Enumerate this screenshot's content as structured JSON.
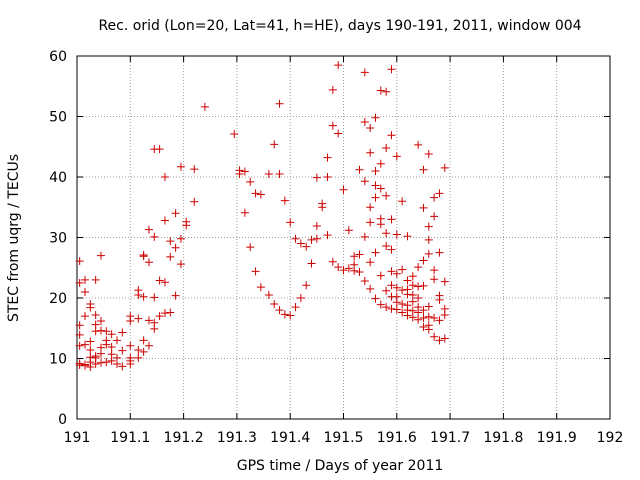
{
  "chart_data": {
    "type": "scatter",
    "title": "Rec. orid (Lon=20, Lat=41, h=HE), days 190-191, 2011, window 004",
    "xlabel": "GPS time / Days of year 2011",
    "ylabel": "STEC from uqrg / TECUs",
    "xlim": [
      191,
      192
    ],
    "ylim": [
      0,
      60
    ],
    "x_ticks": [
      "191",
      "191.1",
      "191.2",
      "191.3",
      "191.4",
      "191.5",
      "191.6",
      "191.7",
      "191.8",
      "191.9",
      "192"
    ],
    "y_ticks": [
      "0",
      "10",
      "20",
      "30",
      "40",
      "50",
      "60"
    ],
    "grid": true,
    "marker": "plus",
    "color": "#cc0000",
    "series": [
      {
        "points": [
          [
            191.005,
            26.1
          ],
          [
            191.005,
            22.5
          ],
          [
            191.005,
            15.5
          ],
          [
            191.005,
            13.9
          ],
          [
            191.005,
            12.1
          ],
          [
            191.005,
            9.2
          ],
          [
            191.005,
            8.9
          ],
          [
            191.015,
            23.0
          ],
          [
            191.015,
            21.0
          ],
          [
            191.015,
            17.0
          ],
          [
            191.015,
            12.3
          ],
          [
            191.015,
            9.0
          ],
          [
            191.015,
            8.8
          ],
          [
            191.025,
            19.0
          ],
          [
            191.025,
            18.4
          ],
          [
            191.025,
            12.8
          ],
          [
            191.025,
            11.4
          ],
          [
            191.025,
            10.2
          ],
          [
            191.025,
            9.4
          ],
          [
            191.025,
            8.6
          ],
          [
            191.035,
            23.0
          ],
          [
            191.035,
            17.2
          ],
          [
            191.035,
            15.6
          ],
          [
            191.035,
            14.5
          ],
          [
            191.035,
            10.4
          ],
          [
            191.035,
            10.1
          ],
          [
            191.035,
            9.1
          ],
          [
            191.045,
            27.0
          ],
          [
            191.045,
            16.2
          ],
          [
            191.045,
            14.6
          ],
          [
            191.045,
            11.8
          ],
          [
            191.045,
            10.8
          ],
          [
            191.045,
            9.3
          ],
          [
            191.055,
            14.5
          ],
          [
            191.055,
            13.0
          ],
          [
            191.055,
            12.3
          ],
          [
            191.055,
            9.4
          ],
          [
            191.065,
            14.0
          ],
          [
            191.065,
            11.9
          ],
          [
            191.065,
            10.7
          ],
          [
            191.065,
            9.6
          ],
          [
            191.075,
            13.0
          ],
          [
            191.075,
            10.1
          ],
          [
            191.075,
            9.1
          ],
          [
            191.085,
            14.3
          ],
          [
            191.085,
            11.3
          ],
          [
            191.085,
            8.7
          ],
          [
            191.1,
            17.0
          ],
          [
            191.1,
            16.2
          ],
          [
            191.1,
            12.1
          ],
          [
            191.1,
            10.1
          ],
          [
            191.1,
            9.6
          ],
          [
            191.1,
            9.1
          ],
          [
            191.115,
            21.3
          ],
          [
            191.115,
            20.5
          ],
          [
            191.115,
            16.6
          ],
          [
            191.115,
            11.4
          ],
          [
            191.115,
            10.1
          ],
          [
            191.125,
            27.1
          ],
          [
            191.125,
            26.9
          ],
          [
            191.125,
            20.2
          ],
          [
            191.125,
            13.0
          ],
          [
            191.125,
            11.1
          ],
          [
            191.135,
            31.3
          ],
          [
            191.135,
            25.9
          ],
          [
            191.135,
            16.3
          ],
          [
            191.135,
            12.1
          ],
          [
            191.145,
            44.6
          ],
          [
            191.145,
            30.1
          ],
          [
            191.145,
            20.1
          ],
          [
            191.145,
            15.9
          ],
          [
            191.145,
            14.9
          ],
          [
            191.155,
            44.6
          ],
          [
            191.155,
            22.9
          ],
          [
            191.155,
            17.0
          ],
          [
            191.165,
            40.0
          ],
          [
            191.165,
            32.8
          ],
          [
            191.165,
            22.6
          ],
          [
            191.165,
            17.5
          ],
          [
            191.175,
            29.4
          ],
          [
            191.175,
            26.8
          ],
          [
            191.175,
            17.6
          ],
          [
            191.185,
            34.0
          ],
          [
            191.185,
            28.3
          ],
          [
            191.185,
            20.4
          ],
          [
            191.195,
            41.7
          ],
          [
            191.195,
            29.8
          ],
          [
            191.195,
            25.6
          ],
          [
            191.205,
            32.6
          ],
          [
            191.205,
            32.0
          ],
          [
            191.22,
            41.3
          ],
          [
            191.22,
            35.9
          ],
          [
            191.24,
            51.6
          ],
          [
            191.295,
            47.1
          ],
          [
            191.305,
            41.1
          ],
          [
            191.305,
            40.5
          ],
          [
            191.315,
            40.9
          ],
          [
            191.315,
            34.1
          ],
          [
            191.325,
            39.2
          ],
          [
            191.325,
            28.4
          ],
          [
            191.335,
            37.3
          ],
          [
            191.335,
            24.4
          ],
          [
            191.345,
            37.1
          ],
          [
            191.345,
            21.8
          ],
          [
            191.36,
            40.5
          ],
          [
            191.36,
            20.5
          ],
          [
            191.37,
            45.4
          ],
          [
            191.37,
            19.0
          ],
          [
            191.38,
            52.1
          ],
          [
            191.38,
            40.5
          ],
          [
            191.38,
            18.0
          ],
          [
            191.39,
            36.1
          ],
          [
            191.39,
            17.3
          ],
          [
            191.4,
            32.5
          ],
          [
            191.4,
            17.1
          ],
          [
            191.41,
            29.8
          ],
          [
            191.41,
            18.5
          ],
          [
            191.42,
            29.0
          ],
          [
            191.42,
            20.0
          ],
          [
            191.43,
            28.5
          ],
          [
            191.43,
            22.1
          ],
          [
            191.44,
            25.7
          ],
          [
            191.44,
            29.6
          ],
          [
            191.45,
            39.9
          ],
          [
            191.45,
            31.9
          ],
          [
            191.45,
            29.8
          ],
          [
            191.46,
            35.6
          ],
          [
            191.46,
            35.0
          ],
          [
            191.47,
            43.2
          ],
          [
            191.47,
            40.0
          ],
          [
            191.47,
            30.4
          ],
          [
            191.48,
            54.4
          ],
          [
            191.48,
            48.5
          ],
          [
            191.48,
            26.0
          ],
          [
            191.49,
            58.5
          ],
          [
            191.49,
            47.2
          ],
          [
            191.49,
            25.1
          ],
          [
            191.5,
            37.9
          ],
          [
            191.5,
            24.6
          ],
          [
            191.51,
            31.2
          ],
          [
            191.51,
            24.9
          ],
          [
            191.52,
            26.9
          ],
          [
            191.52,
            25.5
          ],
          [
            191.52,
            24.5
          ],
          [
            191.53,
            41.2
          ],
          [
            191.53,
            27.2
          ],
          [
            191.53,
            24.3
          ],
          [
            191.54,
            57.3
          ],
          [
            191.54,
            49.1
          ],
          [
            191.54,
            39.3
          ],
          [
            191.54,
            30.1
          ],
          [
            191.54,
            22.8
          ],
          [
            191.55,
            48.1
          ],
          [
            191.55,
            44.0
          ],
          [
            191.55,
            35.0
          ],
          [
            191.55,
            32.5
          ],
          [
            191.55,
            25.9
          ],
          [
            191.55,
            21.5
          ],
          [
            191.56,
            49.8
          ],
          [
            191.56,
            41.0
          ],
          [
            191.56,
            38.6
          ],
          [
            191.56,
            36.6
          ],
          [
            191.56,
            27.5
          ],
          [
            191.56,
            19.9
          ],
          [
            191.57,
            54.3
          ],
          [
            191.57,
            42.2
          ],
          [
            191.57,
            38.1
          ],
          [
            191.57,
            33.1
          ],
          [
            191.57,
            32.2
          ],
          [
            191.57,
            23.7
          ],
          [
            191.57,
            18.9
          ],
          [
            191.58,
            54.1
          ],
          [
            191.58,
            44.8
          ],
          [
            191.58,
            36.9
          ],
          [
            191.58,
            30.7
          ],
          [
            191.58,
            28.6
          ],
          [
            191.58,
            21.2
          ],
          [
            191.58,
            18.5
          ],
          [
            191.59,
            57.8
          ],
          [
            191.59,
            46.9
          ],
          [
            191.59,
            33.0
          ],
          [
            191.59,
            28.0
          ],
          [
            191.59,
            24.4
          ],
          [
            191.59,
            22.1
          ],
          [
            191.59,
            20.2
          ],
          [
            191.59,
            18.2
          ],
          [
            191.6,
            43.4
          ],
          [
            191.6,
            30.5
          ],
          [
            191.6,
            24.0
          ],
          [
            191.6,
            21.7
          ],
          [
            191.6,
            20.2
          ],
          [
            191.6,
            19.3
          ],
          [
            191.6,
            18.1
          ],
          [
            191.61,
            36.0
          ],
          [
            191.61,
            24.7
          ],
          [
            191.61,
            21.3
          ],
          [
            191.61,
            19.0
          ],
          [
            191.61,
            17.6
          ],
          [
            191.62,
            30.2
          ],
          [
            191.62,
            22.9
          ],
          [
            191.62,
            21.4
          ],
          [
            191.62,
            20.6
          ],
          [
            191.62,
            18.8
          ],
          [
            191.62,
            18.0
          ],
          [
            191.62,
            17.1
          ],
          [
            191.63,
            23.6
          ],
          [
            191.63,
            22.1
          ],
          [
            191.63,
            20.5
          ],
          [
            191.63,
            19.4
          ],
          [
            191.63,
            17.9
          ],
          [
            191.63,
            16.8
          ],
          [
            191.64,
            45.3
          ],
          [
            191.64,
            25.1
          ],
          [
            191.64,
            21.9
          ],
          [
            191.64,
            20.0
          ],
          [
            191.64,
            18.5
          ],
          [
            191.64,
            17.6
          ],
          [
            191.64,
            16.4
          ],
          [
            191.65,
            41.2
          ],
          [
            191.65,
            34.9
          ],
          [
            191.65,
            26.2
          ],
          [
            191.65,
            22.0
          ],
          [
            191.65,
            18.0
          ],
          [
            191.65,
            16.7
          ],
          [
            191.65,
            15.2
          ],
          [
            191.66,
            43.8
          ],
          [
            191.66,
            31.8
          ],
          [
            191.66,
            29.6
          ],
          [
            191.66,
            27.3
          ],
          [
            191.66,
            18.6
          ],
          [
            191.66,
            16.9
          ],
          [
            191.66,
            15.5
          ],
          [
            191.66,
            14.8
          ],
          [
            191.67,
            36.6
          ],
          [
            191.67,
            33.5
          ],
          [
            191.67,
            24.6
          ],
          [
            191.67,
            23.1
          ],
          [
            191.67,
            16.7
          ],
          [
            191.67,
            13.6
          ],
          [
            191.68,
            37.3
          ],
          [
            191.68,
            27.5
          ],
          [
            191.68,
            20.4
          ],
          [
            191.68,
            19.7
          ],
          [
            191.68,
            16.3
          ],
          [
            191.68,
            13.0
          ],
          [
            191.69,
            41.5
          ],
          [
            191.69,
            22.7
          ],
          [
            191.69,
            18.2
          ],
          [
            191.69,
            17.2
          ],
          [
            191.69,
            13.3
          ]
        ]
      }
    ]
  }
}
